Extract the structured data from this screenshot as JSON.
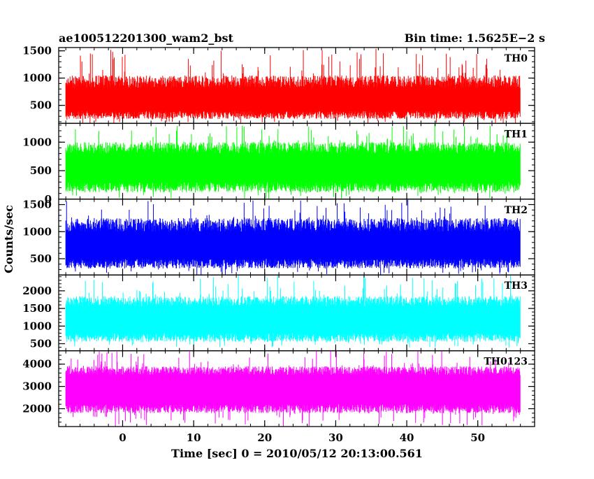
{
  "header": {
    "left_title": "ae100512201300_wam2_bst",
    "right_title": "Bin time: 1.5625E−2 s"
  },
  "chart_data": {
    "type": "line",
    "xlabel": "Time [sec] 0 = 2010/05/12 20:13:00.561",
    "ylabel": "Counts/sec",
    "xlim": [
      -9,
      58
    ],
    "data_x_range": [
      -8,
      56
    ],
    "x_ticks": [
      0,
      10,
      20,
      30,
      40,
      50
    ],
    "x_tick_labels": [
      "0",
      "10",
      "20",
      "30",
      "40",
      "50"
    ],
    "bin_time_s": 0.015625,
    "series": [
      {
        "name": "TH0",
        "color": "#ff0000",
        "ylim": [
          170,
          1560
        ],
        "y_ticks": [
          500,
          1000,
          1500
        ],
        "y_tick_labels": [
          "500",
          "1000",
          "1500"
        ],
        "mean": 620,
        "envelope_low": [
          250,
          400
        ],
        "envelope_high": [
          820,
          1050
        ],
        "spike_min": 170,
        "spike_max": 1560
      },
      {
        "name": "TH1",
        "color": "#00ff00",
        "ylim": [
          0,
          1330
        ],
        "y_ticks": [
          0,
          500,
          1000
        ],
        "y_tick_labels": [
          "0",
          "500",
          "1000"
        ],
        "mean": 520,
        "envelope_low": [
          120,
          300
        ],
        "envelope_high": [
          800,
          1000
        ],
        "spike_min": 10,
        "spike_max": 1330
      },
      {
        "name": "TH2",
        "color": "#0000ff",
        "ylim": [
          200,
          1600
        ],
        "y_ticks": [
          500,
          1000,
          1500
        ],
        "y_tick_labels": [
          "500",
          "1000",
          "1500"
        ],
        "mean": 750,
        "envelope_low": [
          320,
          500
        ],
        "envelope_high": [
          1000,
          1250
        ],
        "spike_min": 200,
        "spike_max": 1600
      },
      {
        "name": "TH3",
        "color": "#00ffff",
        "ylim": [
          300,
          2450
        ],
        "y_ticks": [
          500,
          1000,
          1500,
          2000
        ],
        "y_tick_labels": [
          "500",
          "1000",
          "1500",
          "2000"
        ],
        "mean": 1150,
        "envelope_low": [
          550,
          800
        ],
        "envelope_high": [
          1550,
          1850
        ],
        "spike_min": 380,
        "spike_max": 2450
      },
      {
        "name": "TH0123",
        "color": "#ff00ff",
        "ylim": [
          1200,
          4600
        ],
        "y_ticks": [
          2000,
          3000,
          4000
        ],
        "y_tick_labels": [
          "2000",
          "3000",
          "4000"
        ],
        "mean": 2700,
        "envelope_low": [
          1800,
          2200
        ],
        "envelope_high": [
          3500,
          3900
        ],
        "spike_min": 1200,
        "spike_max": 4600
      }
    ]
  }
}
